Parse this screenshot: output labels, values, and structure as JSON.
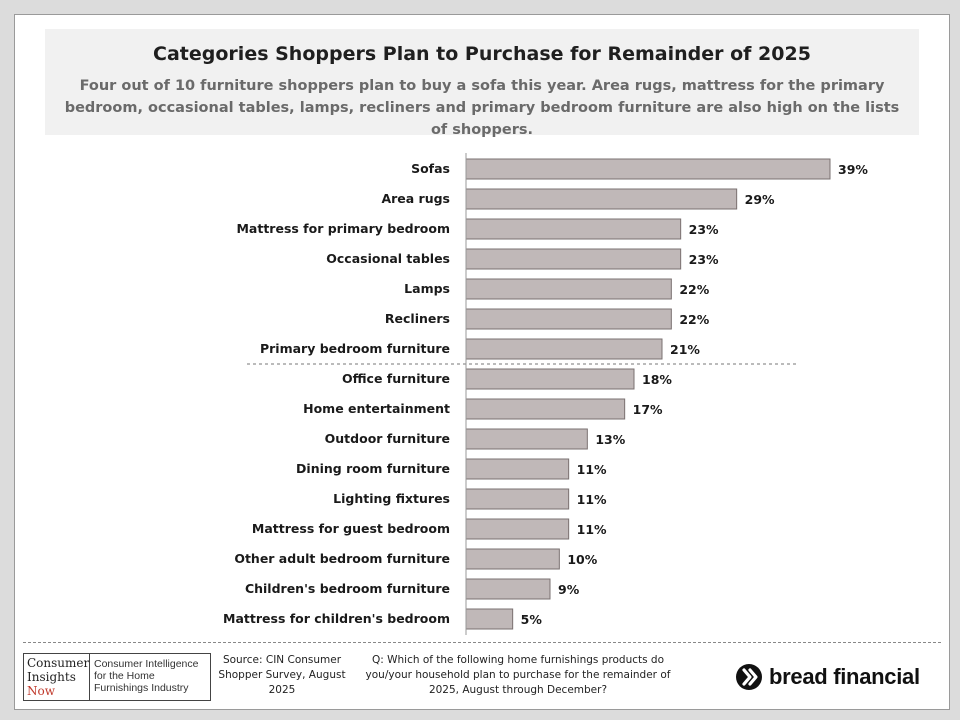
{
  "header": {
    "title": "Categories Shoppers Plan to Purchase for Remainder of 2025",
    "subtitle": "Four out of 10 furniture shoppers plan to buy a sofa this year. Area rugs, mattress for the primary bedroom, occasional tables, lamps, recliners and primary bedroom furniture are also high on the lists of shoppers."
  },
  "chart_data": {
    "type": "bar",
    "orientation": "horizontal",
    "categories": [
      "Sofas",
      "Area rugs",
      "Mattress for primary bedroom",
      "Occasional tables",
      "Lamps",
      "Recliners",
      "Primary bedroom furniture",
      "Office furniture",
      "Home entertainment",
      "Outdoor furniture",
      "Dining room furniture",
      "Lighting fixtures",
      "Mattress for guest bedroom",
      "Other adult bedroom furniture",
      "Children's bedroom furniture",
      "Mattress for children's bedroom"
    ],
    "values": [
      39,
      29,
      23,
      23,
      22,
      22,
      21,
      18,
      17,
      13,
      11,
      11,
      11,
      10,
      9,
      5
    ],
    "value_labels": [
      "39%",
      "29%",
      "23%",
      "23%",
      "22%",
      "22%",
      "21%",
      "18%",
      "17%",
      "13%",
      "11%",
      "11%",
      "11%",
      "10%",
      "9%",
      "5%"
    ],
    "unit": "%",
    "bar_color": "#c0b8b8",
    "divider_after_category": "Primary bedroom furniture"
  },
  "footer": {
    "logo_text": [
      "Consumer",
      "Insights",
      "Now"
    ],
    "logo_tagline": "Consumer Intelligence for the Home Furnishings Industry",
    "source": "Source: CIN Consumer Shopper Survey, August 2025",
    "question": "Q: Which of the following home furnishings products do you/your household plan to purchase for the remainder of 2025, August through December?",
    "brand": "bread financial"
  }
}
